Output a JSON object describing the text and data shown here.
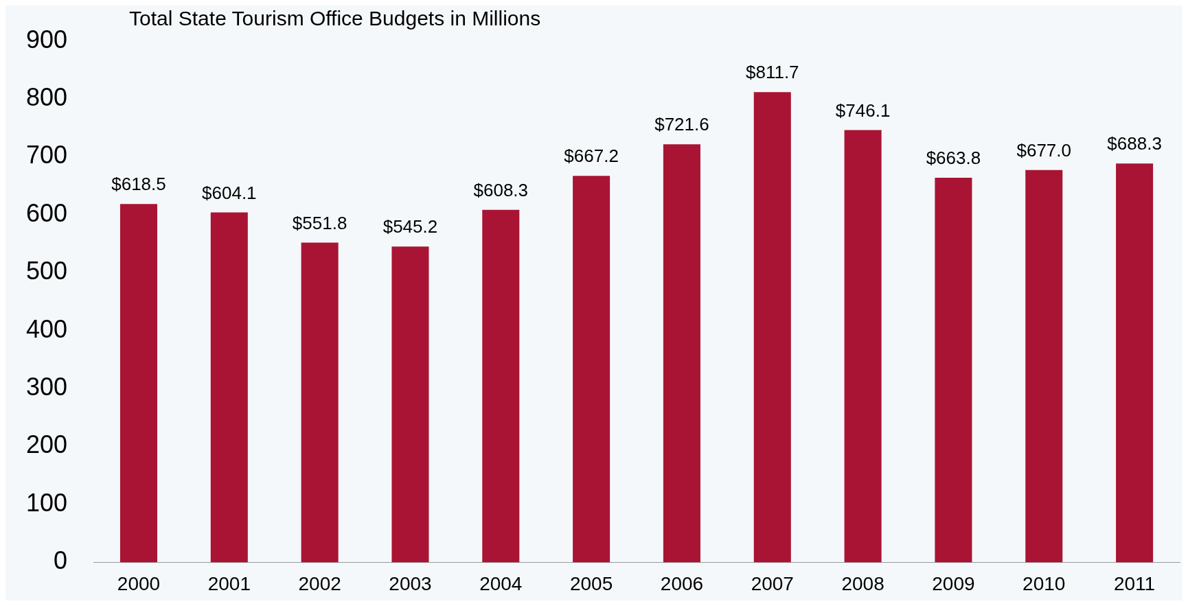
{
  "chart_data": {
    "type": "bar",
    "title": "Total State Tourism Office Budgets in Millions",
    "categories": [
      "2000",
      "2001",
      "2002",
      "2003",
      "2004",
      "2005",
      "2006",
      "2007",
      "2008",
      "2009",
      "2010",
      "2011"
    ],
    "values": [
      618.5,
      604.1,
      551.8,
      545.2,
      608.3,
      667.2,
      721.6,
      811.7,
      746.1,
      663.8,
      677.0,
      688.3
    ],
    "value_labels": [
      "$618.5",
      "$604.1",
      "$551.8",
      "$545.2",
      "$608.3",
      "$667.2",
      "$721.6",
      "$811.7",
      "$746.1",
      "$663.8",
      "$677.0",
      "$688.3"
    ],
    "color": "#a91434",
    "ylim": [
      0,
      900
    ],
    "yticks": [
      0,
      100,
      200,
      300,
      400,
      500,
      600,
      700,
      800,
      900
    ],
    "grid": false,
    "legend": false
  }
}
